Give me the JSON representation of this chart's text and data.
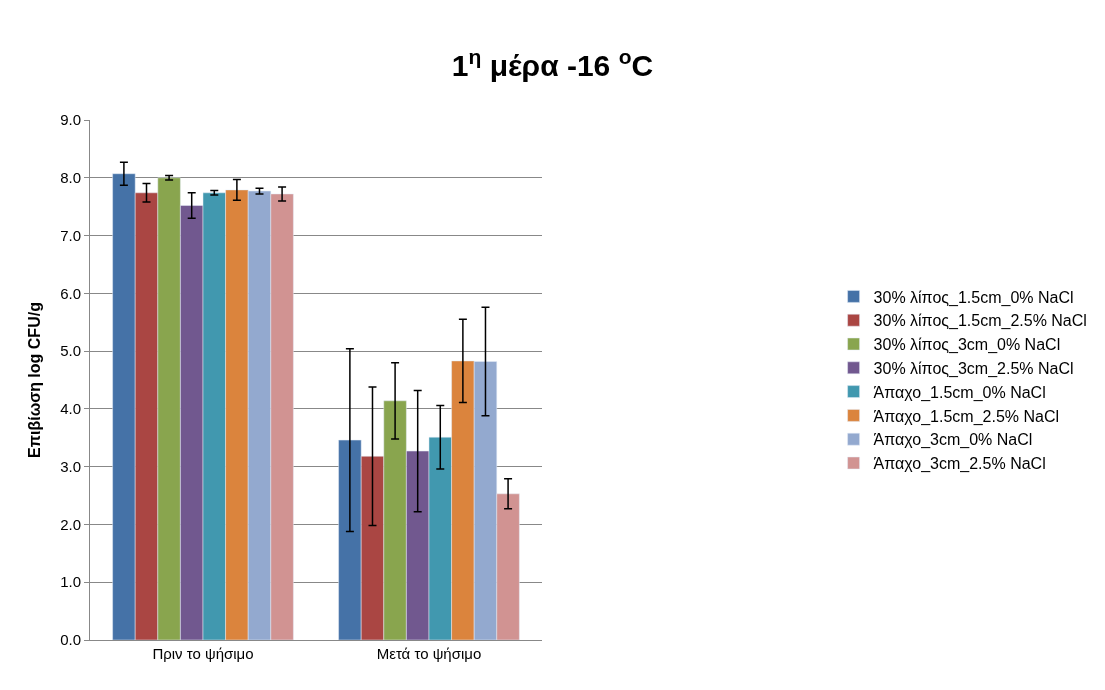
{
  "chart_data": {
    "type": "bar",
    "title": "1$^{η}$ μέρα -16 $^{o}$C",
    "ylabel": "Επιβίωση log CFU/g",
    "categories": [
      "Πριν το ψήσιμο",
      "Μετά το ψήσιμο"
    ],
    "series": [
      {
        "name": "30% λίπος_1.5cm_0% NaCl",
        "color": "#4572a7",
        "values": [
          8.07,
          3.46
        ],
        "errors": [
          0.2,
          1.58
        ]
      },
      {
        "name": "30% λίπος_1.5cm_2.5% NaCl",
        "color": "#aa4643",
        "values": [
          7.74,
          3.18
        ],
        "errors": [
          0.16,
          1.2
        ]
      },
      {
        "name": "30% λίπος_3cm_0% NaCl",
        "color": "#89a54e",
        "values": [
          8.0,
          4.14
        ],
        "errors": [
          0.04,
          0.66
        ]
      },
      {
        "name": "30% λίπος_3cm_2.5% NaCl",
        "color": "#71588f",
        "values": [
          7.52,
          3.27
        ],
        "errors": [
          0.22,
          1.05
        ]
      },
      {
        "name": "Άπαχο_1.5cm_0% NaCl",
        "color": "#4198af",
        "values": [
          7.74,
          3.51
        ],
        "errors": [
          0.04,
          0.55
        ]
      },
      {
        "name": "Άπαχο_1.5cm_2.5% NaCl",
        "color": "#db843d",
        "values": [
          7.79,
          4.83
        ],
        "errors": [
          0.18,
          0.72
        ]
      },
      {
        "name": "Άπαχο_3cm_0% NaCl",
        "color": "#93a9cf",
        "values": [
          7.77,
          4.82
        ],
        "errors": [
          0.05,
          0.94
        ]
      },
      {
        "name": "Άπαχο_3cm_2.5% NaCl",
        "color": "#d19392",
        "values": [
          7.72,
          2.53
        ],
        "errors": [
          0.12,
          0.26
        ]
      }
    ],
    "ylim": [
      0,
      9
    ],
    "yticks": [
      {
        "value": 0,
        "label": "0.0"
      },
      {
        "value": 1,
        "label": "1.0"
      },
      {
        "value": 2,
        "label": "2.0"
      },
      {
        "value": 3,
        "label": "3.0"
      },
      {
        "value": 4,
        "label": "4.0"
      },
      {
        "value": 5,
        "label": "5.0"
      },
      {
        "value": 6,
        "label": "6.0"
      },
      {
        "value": 7,
        "label": "7.0"
      },
      {
        "value": 8,
        "label": "8.0"
      },
      {
        "value": 9,
        "label": "9.0"
      }
    ],
    "grid": "y",
    "legend": "right"
  }
}
